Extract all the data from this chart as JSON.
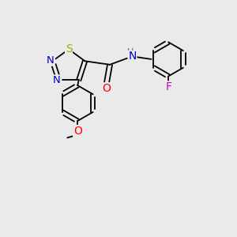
{
  "bg_color": "#eaeaea",
  "bond_color": "#000000",
  "bond_width": 1.3,
  "atom_colors": {
    "N": "#0000cc",
    "S": "#aaaa00",
    "O": "#ff0000",
    "F": "#cc00cc",
    "H": "#555577",
    "C": "#000000"
  },
  "font_size": 9.5,
  "xlim": [
    0,
    10
  ],
  "ylim": [
    0,
    10
  ]
}
